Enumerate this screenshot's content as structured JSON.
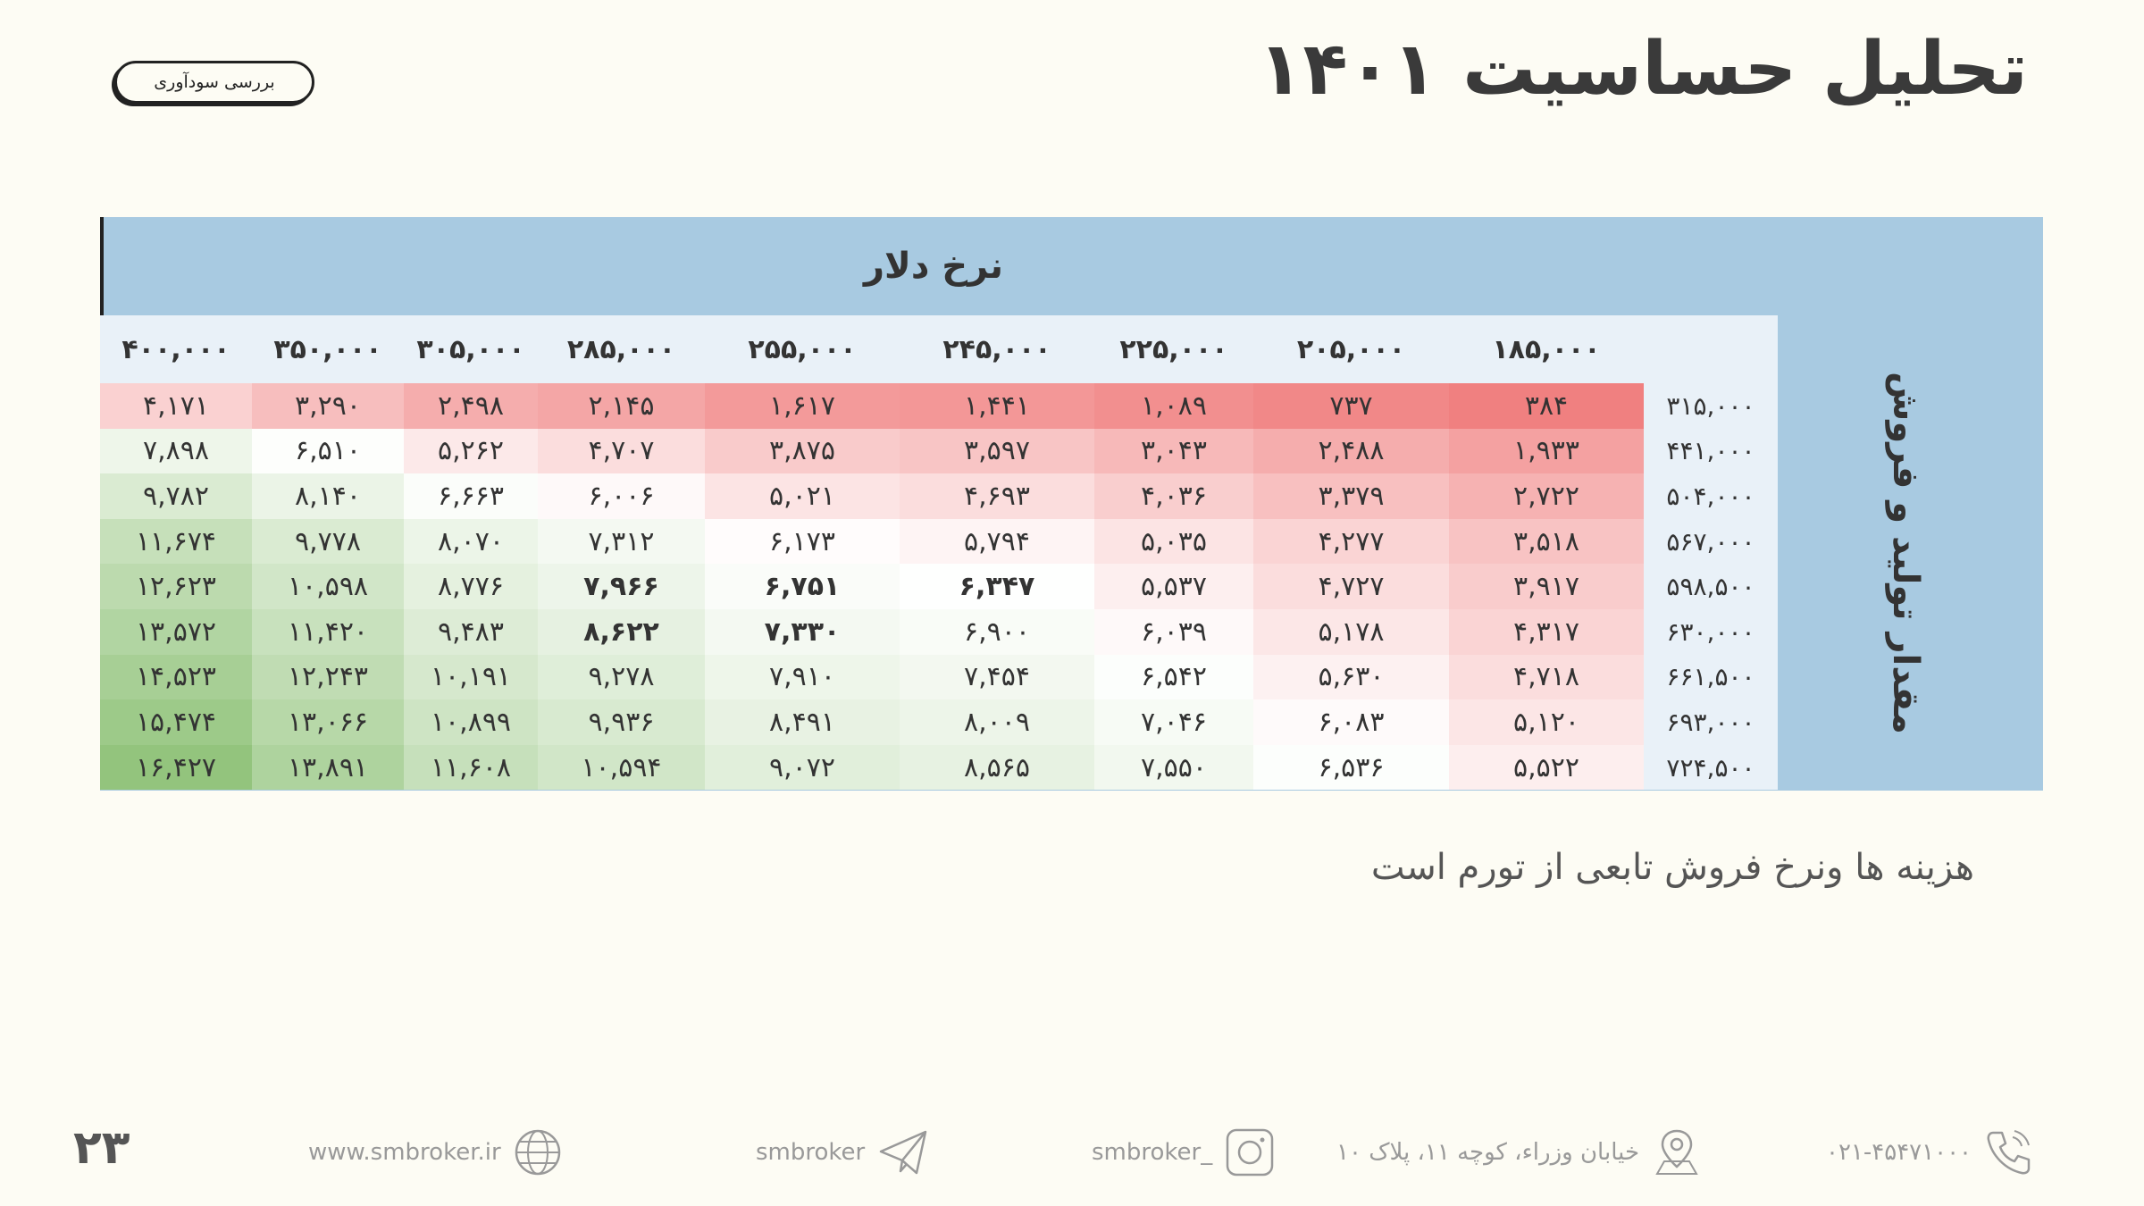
{
  "title": "تحلیل حساسیت ۱۴۰۱",
  "badge": "بررسی سودآوری",
  "table": {
    "column_header": "نرخ دلار",
    "row_header": "مقدار تولید و فروش",
    "columns": [
      "۱۸۵,۰۰۰",
      "۲۰۵,۰۰۰",
      "۲۲۵,۰۰۰",
      "۲۴۵,۰۰۰",
      "۲۵۵,۰۰۰",
      "۲۸۵,۰۰۰",
      "۳۰۵,۰۰۰",
      "۳۵۰,۰۰۰",
      "۴۰۰,۰۰۰"
    ],
    "rows": [
      {
        "label": "۳۱۵,۰۰۰",
        "cells": [
          "۳۸۴",
          "۷۳۷",
          "۱,۰۸۹",
          "۱,۴۴۱",
          "۱,۶۱۷",
          "۲,۱۴۵",
          "۲,۴۹۸",
          "۳,۲۹۰",
          "۴,۱۷۱"
        ]
      },
      {
        "label": "۴۴۱,۰۰۰",
        "cells": [
          "۱,۹۳۳",
          "۲,۴۸۸",
          "۳,۰۴۳",
          "۳,۵۹۷",
          "۳,۸۷۵",
          "۴,۷۰۷",
          "۵,۲۶۲",
          "۶,۵۱۰",
          "۷,۸۹۸"
        ]
      },
      {
        "label": "۵۰۴,۰۰۰",
        "cells": [
          "۲,۷۲۲",
          "۳,۳۷۹",
          "۴,۰۳۶",
          "۴,۶۹۳",
          "۵,۰۲۱",
          "۶,۰۰۶",
          "۶,۶۶۳",
          "۸,۱۴۰",
          "۹,۷۸۲"
        ]
      },
      {
        "label": "۵۶۷,۰۰۰",
        "cells": [
          "۳,۵۱۸",
          "۴,۲۷۷",
          "۵,۰۳۵",
          "۵,۷۹۴",
          "۶,۱۷۳",
          "۷,۳۱۲",
          "۸,۰۷۰",
          "۹,۷۷۸",
          "۱۱,۶۷۴"
        ]
      },
      {
        "label": "۵۹۸,۵۰۰",
        "cells": [
          "۳,۹۱۷",
          "۴,۷۲۷",
          "۵,۵۳۷",
          "۶,۳۴۷",
          "۶,۷۵۱",
          "۷,۹۶۶",
          "۸,۷۷۶",
          "۱۰,۵۹۸",
          "۱۲,۶۲۳"
        ]
      },
      {
        "label": "۶۳۰,۰۰۰",
        "cells": [
          "۴,۳۱۷",
          "۵,۱۷۸",
          "۶,۰۳۹",
          "۶,۹۰۰",
          "۷,۳۳۰",
          "۸,۶۲۲",
          "۹,۴۸۳",
          "۱۱,۴۲۰",
          "۱۳,۵۷۲"
        ]
      },
      {
        "label": "۶۶۱,۵۰۰",
        "cells": [
          "۴,۷۱۸",
          "۵,۶۳۰",
          "۶,۵۴۲",
          "۷,۴۵۴",
          "۷,۹۱۰",
          "۹,۲۷۸",
          "۱۰,۱۹۱",
          "۱۲,۲۴۳",
          "۱۴,۵۲۳"
        ]
      },
      {
        "label": "۶۹۳,۰۰۰",
        "cells": [
          "۵,۱۲۰",
          "۶,۰۸۳",
          "۷,۰۴۶",
          "۸,۰۰۹",
          "۸,۴۹۱",
          "۹,۹۳۶",
          "۱۰,۸۹۹",
          "۱۳,۰۶۶",
          "۱۵,۴۷۴"
        ]
      },
      {
        "label": "۷۲۴,۵۰۰",
        "cells": [
          "۵,۵۲۲",
          "۶,۵۳۶",
          "۷,۵۵۰",
          "۸,۵۶۵",
          "۹,۰۷۲",
          "۱۰,۵۹۴",
          "۱۱,۶۰۸",
          "۱۳,۸۹۱",
          "۱۶,۴۲۷"
        ]
      }
    ],
    "values": [
      [
        384,
        737,
        1089,
        1441,
        1617,
        2145,
        2498,
        3290,
        4171
      ],
      [
        1933,
        2488,
        3043,
        3597,
        3875,
        4707,
        5262,
        6510,
        7898
      ],
      [
        2722,
        3379,
        4036,
        4693,
        5021,
        6006,
        6663,
        8140,
        9782
      ],
      [
        3518,
        4277,
        5035,
        5794,
        6173,
        7312,
        8070,
        9778,
        11674
      ],
      [
        3917,
        4727,
        5537,
        6347,
        6751,
        7966,
        8776,
        10598,
        12623
      ],
      [
        4317,
        5178,
        6039,
        6900,
        7330,
        8622,
        9483,
        11420,
        13572
      ],
      [
        4718,
        5630,
        6542,
        7454,
        7910,
        9278,
        10191,
        12243,
        14523
      ],
      [
        5120,
        6083,
        7046,
        8009,
        8491,
        9936,
        10899,
        13066,
        15474
      ],
      [
        5522,
        6536,
        7550,
        8565,
        9072,
        10594,
        11608,
        13891,
        16427
      ]
    ],
    "bold_cells": [
      [
        4,
        3
      ],
      [
        4,
        4
      ],
      [
        4,
        5
      ],
      [
        5,
        4
      ],
      [
        5,
        5
      ]
    ],
    "colors": {
      "low": "#f08080",
      "mid": "#ffffff",
      "high": "#93c47d"
    }
  },
  "note": "هزینه ها ونرخ فروش تابعی از تورم است",
  "footer": {
    "website": "www.smbroker.ir",
    "telegram": "smbroker",
    "instagram": "smbroker_",
    "address": "خیابان وزراء، کوچه ۱۱، پلاک ۱۰",
    "phone": "۰۲۱-۴۵۴۷۱۰۰۰",
    "page_number": "۲۳"
  }
}
